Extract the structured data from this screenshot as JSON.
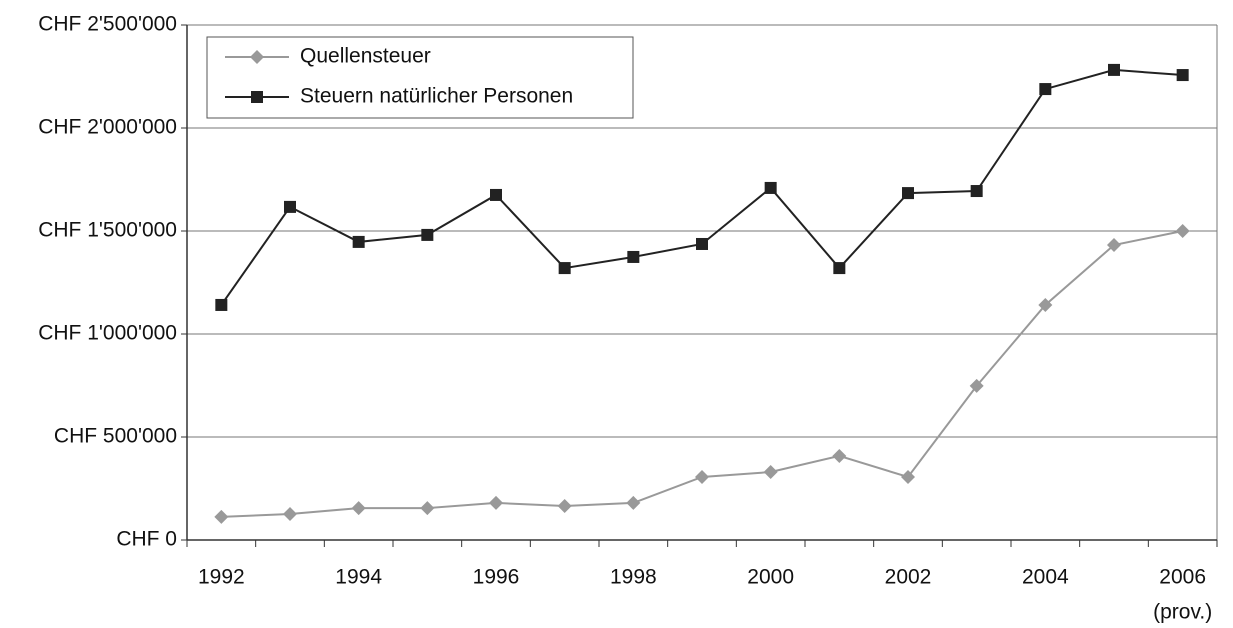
{
  "chart_data": {
    "type": "line",
    "categories": [
      "1992",
      null,
      "1994",
      null,
      "1996",
      null,
      "1998",
      null,
      "2000",
      null,
      "2002",
      null,
      "2004",
      null,
      "2006"
    ],
    "x_note": "(prov.)",
    "series": [
      {
        "name": "Quellensteuer",
        "color": "#999999",
        "marker": "diamond",
        "values": [
          112000,
          126000,
          155000,
          155000,
          180000,
          165000,
          180000,
          306000,
          330000,
          408000,
          306000,
          748000,
          1141000,
          1432000,
          1500000
        ]
      },
      {
        "name": "Steuern natürlicher Personen",
        "color": "#222222",
        "marker": "square",
        "values": [
          1141000,
          1617000,
          1447000,
          1481000,
          1675000,
          1320000,
          1374000,
          1437000,
          1709000,
          1320000,
          1684000,
          1694000,
          2189000,
          2282000,
          2257000
        ]
      }
    ],
    "ylim": [
      0,
      2500000
    ],
    "yticks": [
      {
        "value": 0,
        "label": "CHF 0"
      },
      {
        "value": 500000,
        "label": "CHF 500'000"
      },
      {
        "value": 1000000,
        "label": "CHF 1'000'000"
      },
      {
        "value": 1500000,
        "label": "CHF 1'500'000"
      },
      {
        "value": 2000000,
        "label": "CHF 2'000'000"
      },
      {
        "value": 2500000,
        "label": "CHF 2'500'000"
      }
    ],
    "grid": true,
    "legend": "top-left"
  }
}
